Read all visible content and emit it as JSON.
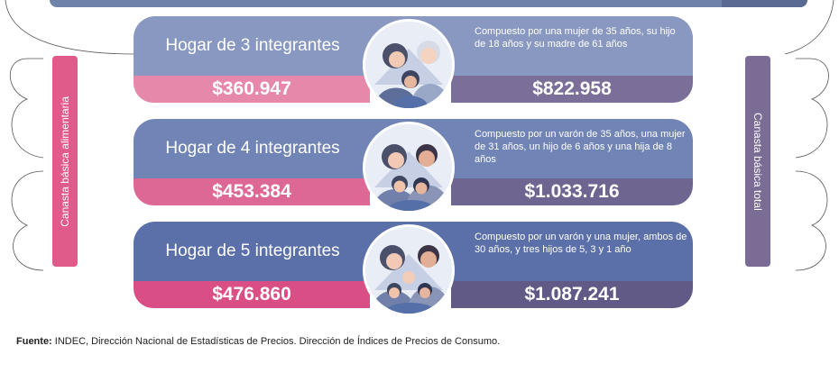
{
  "side_labels": {
    "left": "Canasta básica alimentaria",
    "right": "Canasta básica total"
  },
  "households": [
    {
      "title": "Hogar de 3 integrantes",
      "description": "Compuesto por una mujer de 35 años, su hijo de 18 años y su madre de 61 años",
      "cba": "$360.947",
      "cbt": "$822.958",
      "illustration": "family-of-3-icon"
    },
    {
      "title": "Hogar de 4 integrantes",
      "description": "Compuesto por un varón de 35 años, una mujer de 31 años, un hijo de 6 años y una hija de 8 años",
      "cba": "$453.384",
      "cbt": "$1.033.716",
      "illustration": "family-of-4-icon"
    },
    {
      "title": "Hogar de 5 integrantes",
      "description": "Compuesto por un varón y una mujer, ambos de 30 años, y tres hijos de 5, 3 y 1 año",
      "cba": "$476.860",
      "cbt": "$1.087.241",
      "illustration": "family-of-5-icon"
    }
  ],
  "footer": {
    "label": "Fuente:",
    "text": " INDEC, Dirección Nacional de Estadísticas de Precios. Dirección de Índices de Precios de Consumo."
  },
  "colors": {
    "cba_pink": "#e05a8a",
    "cbt_purple": "#7a6c95",
    "header_blue": "#7184b6"
  }
}
